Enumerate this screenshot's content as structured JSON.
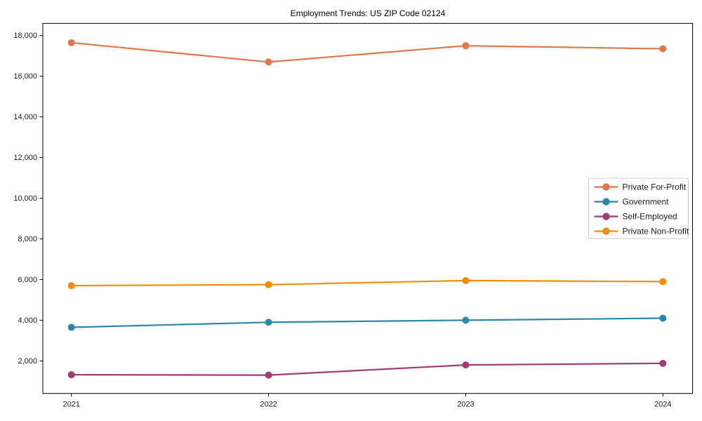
{
  "chart_data": {
    "type": "line",
    "title": "Employment Trends: US ZIP Code 02124",
    "xlabel": "",
    "ylabel": "",
    "x_categories": [
      "2021",
      "2022",
      "2023",
      "2024"
    ],
    "series": [
      {
        "name": "Private For-Profit",
        "color": "#E2764B",
        "values": [
          17650,
          16700,
          17500,
          17350
        ]
      },
      {
        "name": "Government",
        "color": "#2E86AB",
        "values": [
          3650,
          3900,
          4000,
          4100
        ]
      },
      {
        "name": "Self-Employed",
        "color": "#A23B72",
        "values": [
          1320,
          1300,
          1800,
          1880
        ]
      },
      {
        "name": "Private Non-Profit",
        "color": "#F18F01",
        "values": [
          5700,
          5750,
          5950,
          5900
        ]
      }
    ],
    "ylim": [
      400,
      18600
    ],
    "yticks": [
      2000,
      4000,
      6000,
      8000,
      10000,
      12000,
      14000,
      16000,
      18000
    ],
    "ytick_format": "comma",
    "grid": false,
    "legend_position": "right-middle",
    "legend_entries": [
      "Private For-Profit",
      "Government",
      "Self-Employed",
      "Private Non-Profit"
    ],
    "axis_color": "#000000",
    "tick_label_color": "#1a1a1a",
    "legend_border_color": "#cccccc",
    "background_color": "#ffffff"
  }
}
